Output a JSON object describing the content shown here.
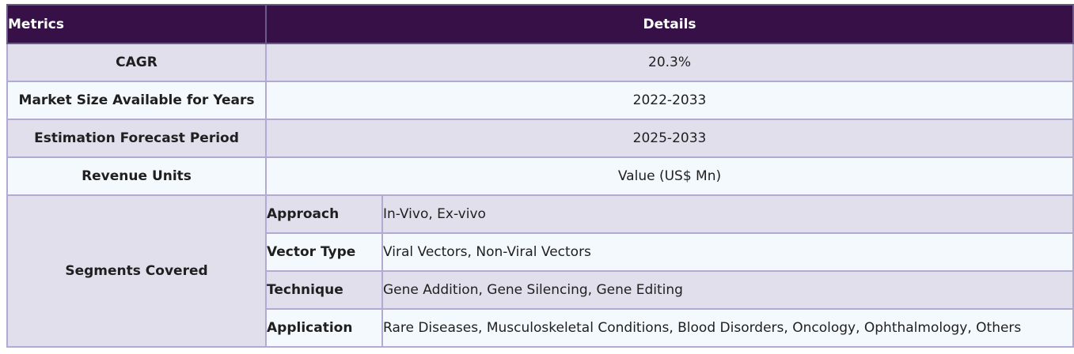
{
  "header": {
    "metrics": "Metrics",
    "details": "Details"
  },
  "rows": [
    {
      "metric": "CAGR",
      "detail": "20.3%"
    },
    {
      "metric": "Market Size Available for Years",
      "detail": "2022-2033"
    },
    {
      "metric": "Estimation Forecast Period",
      "detail": "2025-2033"
    },
    {
      "metric": "Revenue Units",
      "detail": "Value (US$ Mn)"
    }
  ],
  "segments": {
    "metric": "Segments Covered",
    "items": [
      {
        "name": "Approach",
        "value": "In-Vivo, Ex-vivo"
      },
      {
        "name": "Vector Type",
        "value": "Viral Vectors, Non-Viral Vectors"
      },
      {
        "name": "Technique",
        "value": "Gene Addition, Gene Silencing, Gene Editing"
      },
      {
        "name": "Application",
        "value": "Rare Diseases, Musculoskeletal Conditions, Blood Disorders, Oncology, Ophthalmology, Others"
      }
    ]
  },
  "colors": {
    "header_bg": "#371048",
    "row_shade": "#e1dfec",
    "row_plain": "#f4f9fd",
    "border": "#b3aad3"
  }
}
